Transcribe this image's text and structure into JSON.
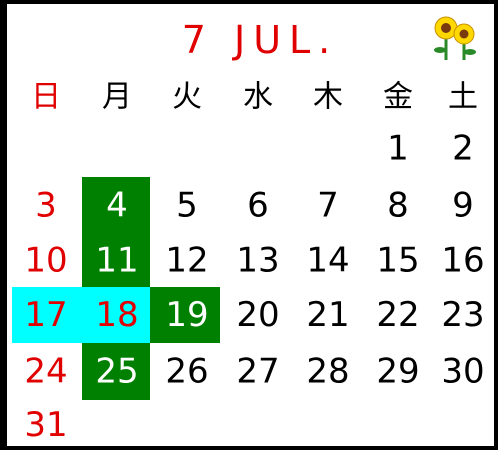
{
  "header": {
    "title": "7 JUL."
  },
  "weekdays": [
    "日",
    "月",
    "火",
    "水",
    "木",
    "金",
    "土"
  ],
  "weeks": [
    [
      null,
      null,
      null,
      null,
      null,
      1,
      2
    ],
    [
      3,
      4,
      5,
      6,
      7,
      8,
      9
    ],
    [
      10,
      11,
      12,
      13,
      14,
      15,
      16
    ],
    [
      17,
      18,
      19,
      20,
      21,
      22,
      23
    ],
    [
      24,
      25,
      26,
      27,
      28,
      29,
      30
    ],
    [
      31,
      null,
      null,
      null,
      null,
      null,
      null
    ]
  ]
}
